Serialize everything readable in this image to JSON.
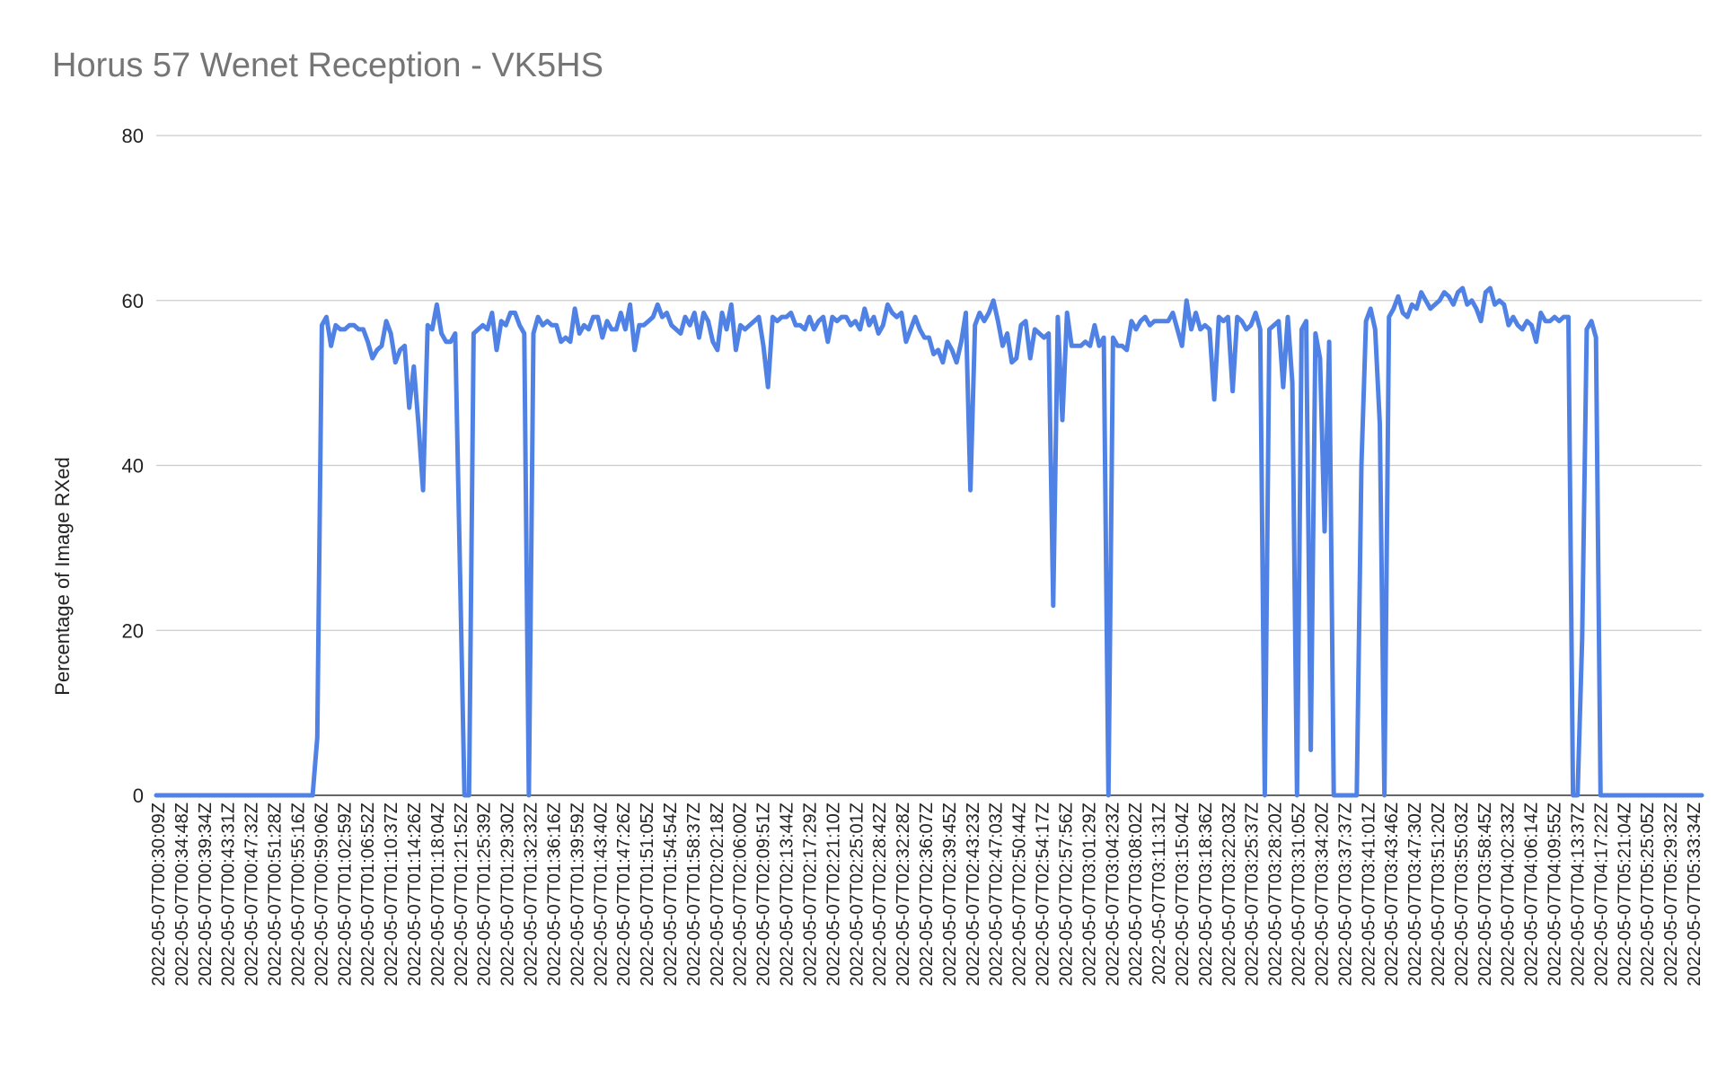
{
  "chart_data": {
    "type": "line",
    "title": "Horus 57 Wenet Reception - VK5HS",
    "xlabel": "",
    "ylabel": "Percentage of Image RXed",
    "ylim": [
      0,
      80
    ],
    "yticks": [
      0,
      20,
      40,
      60,
      80
    ],
    "grid": true,
    "legend": "none",
    "line_color": "#5082e6",
    "x_tick_labels": [
      "2022-05-07T00:30:09Z",
      "2022-05-07T00:34:48Z",
      "2022-05-07T00:39:34Z",
      "2022-05-07T00:43:31Z",
      "2022-05-07T00:47:32Z",
      "2022-05-07T00:51:28Z",
      "2022-05-07T00:55:16Z",
      "2022-05-07T00:59:06Z",
      "2022-05-07T01:02:59Z",
      "2022-05-07T01:06:52Z",
      "2022-05-07T01:10:37Z",
      "2022-05-07T01:14:26Z",
      "2022-05-07T01:18:04Z",
      "2022-05-07T01:21:52Z",
      "2022-05-07T01:25:39Z",
      "2022-05-07T01:29:30Z",
      "2022-05-07T01:32:32Z",
      "2022-05-07T01:36:16Z",
      "2022-05-07T01:39:59Z",
      "2022-05-07T01:43:40Z",
      "2022-05-07T01:47:26Z",
      "2022-05-07T01:51:05Z",
      "2022-05-07T01:54:54Z",
      "2022-05-07T01:58:37Z",
      "2022-05-07T02:02:18Z",
      "2022-05-07T02:06:00Z",
      "2022-05-07T02:09:51Z",
      "2022-05-07T02:13:44Z",
      "2022-05-07T02:17:29Z",
      "2022-05-07T02:21:10Z",
      "2022-05-07T02:25:01Z",
      "2022-05-07T02:28:42Z",
      "2022-05-07T02:32:28Z",
      "2022-05-07T02:36:07Z",
      "2022-05-07T02:39:45Z",
      "2022-05-07T02:43:23Z",
      "2022-05-07T02:47:03Z",
      "2022-05-07T02:50:44Z",
      "2022-05-07T02:54:17Z",
      "2022-05-07T02:57:56Z",
      "2022-05-07T03:01:29Z",
      "2022-05-07T03:04:23Z",
      "2022-05-07T03:08:02Z",
      "2022-05-07T03:11:31Z",
      "2022-05-07T03:15:04Z",
      "2022-05-07T03:18:36Z",
      "2022-05-07T03:22:03Z",
      "2022-05-07T03:25:37Z",
      "2022-05-07T03:28:20Z",
      "2022-05-07T03:31:05Z",
      "2022-05-07T03:34:20Z",
      "2022-05-07T03:37:37Z",
      "2022-05-07T03:41:01Z",
      "2022-05-07T03:43:46Z",
      "2022-05-07T03:47:30Z",
      "2022-05-07T03:51:20Z",
      "2022-05-07T03:55:03Z",
      "2022-05-07T03:58:45Z",
      "2022-05-07T04:02:33Z",
      "2022-05-07T04:06:14Z",
      "2022-05-07T04:09:55Z",
      "2022-05-07T04:13:37Z",
      "2022-05-07T04:17:22Z",
      "2022-05-07T05:21:04Z",
      "2022-05-07T05:25:05Z",
      "2022-05-07T05:29:32Z",
      "2022-05-07T05:33:34Z"
    ],
    "series": [
      {
        "name": "",
        "values": [
          0,
          0,
          0,
          0,
          0,
          0,
          0,
          0,
          0,
          0,
          0,
          0,
          0,
          0,
          0,
          0,
          0,
          0,
          0,
          0,
          0,
          0,
          0,
          0,
          0,
          0,
          0,
          0,
          0,
          0,
          0,
          0,
          0,
          0,
          0,
          7,
          57,
          58,
          54.5,
          57,
          56.5,
          56.5,
          57,
          57,
          56.5,
          56.5,
          55,
          53,
          54,
          54.5,
          57.5,
          56,
          52.5,
          54,
          54.5,
          47,
          52,
          45,
          37,
          57,
          56.5,
          59.5,
          56,
          55,
          55,
          56,
          28,
          0,
          0,
          56,
          56.5,
          57,
          56.5,
          58.5,
          54,
          57.5,
          57,
          58.5,
          58.5,
          57,
          56,
          0,
          56,
          58,
          57,
          57.5,
          57,
          57,
          55,
          55.5,
          55,
          59,
          56,
          57,
          56.5,
          58,
          58,
          55.5,
          57.5,
          56.5,
          56.5,
          58.5,
          56.5,
          59.5,
          54,
          57,
          57,
          57.5,
          58,
          59.5,
          58,
          58.5,
          57,
          56.5,
          56,
          58,
          57,
          58.5,
          55.5,
          58.5,
          57.5,
          55,
          54,
          58.5,
          56.5,
          59.5,
          54,
          57,
          56.5,
          57,
          57.5,
          58,
          54.5,
          49.5,
          58,
          57.5,
          58,
          58,
          58.5,
          57,
          57,
          56.5,
          58,
          56.5,
          57.5,
          58,
          55,
          58,
          57.5,
          58,
          58,
          57,
          57.5,
          56.5,
          59,
          57,
          58,
          56,
          57,
          59.5,
          58.5,
          58,
          58.5,
          55,
          56.5,
          58,
          56.5,
          55.5,
          55.5,
          53.5,
          54,
          52.5,
          55,
          54,
          52.5,
          55,
          58.5,
          37,
          57,
          58.5,
          57.5,
          58.5,
          60,
          57.5,
          54.5,
          56,
          52.5,
          53,
          57,
          57.5,
          53,
          56.5,
          56,
          55.5,
          56,
          23,
          58,
          45.5,
          58.5,
          54.5,
          54.5,
          54.5,
          55,
          54.5,
          57,
          54.5,
          55.5,
          0,
          55.5,
          54.5,
          54.5,
          54,
          57.5,
          56.5,
          57.5,
          58,
          57,
          57.5,
          57.5,
          57.5,
          57.5,
          58.5,
          56.5,
          54.5,
          60,
          56.5,
          58.5,
          56.5,
          57,
          56.5,
          48,
          58,
          57.5,
          58,
          49,
          58,
          57.5,
          56.5,
          57,
          58.5,
          56.5,
          0,
          56.5,
          57,
          57.5,
          49.5,
          58,
          50,
          0,
          56.5,
          57.5,
          5.5,
          56,
          53,
          32,
          55,
          0,
          0,
          0,
          0,
          0,
          0,
          40,
          57.5,
          59,
          56.5,
          45,
          0,
          58,
          59,
          60.5,
          58.5,
          58,
          59.5,
          59,
          61,
          60,
          59,
          59.5,
          60,
          61,
          60.5,
          59.5,
          61,
          61.5,
          59.5,
          60,
          59,
          57.5,
          61,
          61.5,
          59.5,
          60,
          59.5,
          57,
          58,
          57,
          56.5,
          57.5,
          57,
          55,
          58.5,
          57.5,
          57.5,
          58,
          57.5,
          58,
          58,
          0,
          0,
          19,
          56.5,
          57.5,
          55.5,
          0,
          0,
          0,
          0,
          0,
          0,
          0,
          0,
          0,
          0,
          0,
          0,
          0,
          0,
          0,
          0,
          0,
          0,
          0,
          0,
          0,
          0,
          0
        ]
      }
    ]
  }
}
